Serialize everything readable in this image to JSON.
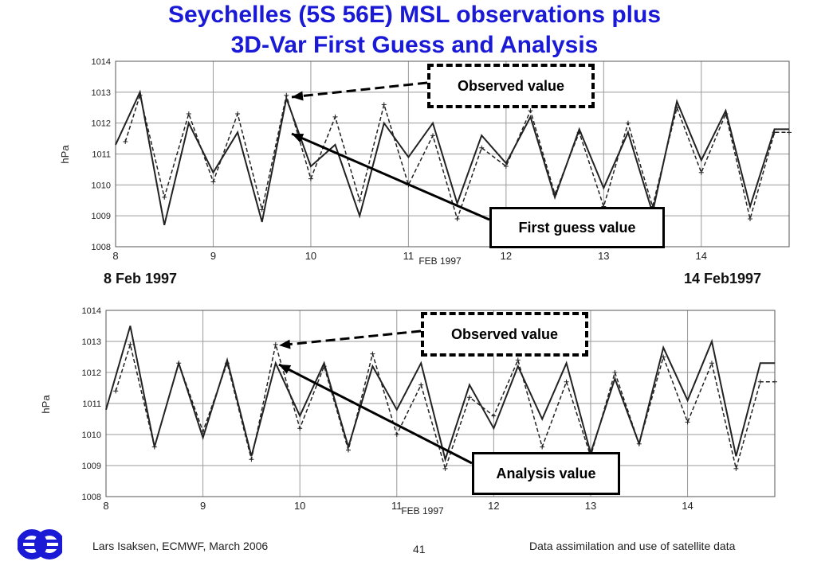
{
  "title": {
    "line1": "Seychelles (5S 56E) MSL observations plus",
    "line2": "3D-Var First Guess and Analysis"
  },
  "date_labels": {
    "start": "8 Feb 1997",
    "end": "14 Feb1997"
  },
  "callouts": {
    "observed_top": "Observed value",
    "first_guess": "First guess value",
    "observed_bottom": "Observed value",
    "analysis": "Analysis value"
  },
  "footer": {
    "author": "Lars Isaksen, ECMWF, March 2006",
    "page": "41",
    "course": "Data assimilation and use of satellite data"
  },
  "colors": {
    "title": "#1a1ad6",
    "plot_line": "#222222",
    "grid": "#9a9a9a"
  },
  "chart_data": [
    {
      "type": "line",
      "ylabel": "hPa",
      "xlabel": "FEB 1997",
      "ylim": [
        1008,
        1014
      ],
      "xlim": [
        8,
        14.9
      ],
      "yticks": [
        "1008",
        "1009",
        "1010",
        "1011",
        "1012",
        "1013",
        "1014"
      ],
      "xticks": [
        "8",
        "9",
        "10",
        "11",
        "12",
        "13",
        "14"
      ],
      "grid": true,
      "series": [
        {
          "style": "solid",
          "x": [
            8.0,
            8.25,
            8.5,
            8.75,
            9.0,
            9.25,
            9.5,
            9.75,
            10.0,
            10.25,
            10.5,
            10.75,
            11.0,
            11.25,
            11.5,
            11.75,
            12.0,
            12.25,
            12.5,
            12.75,
            13.0,
            13.25,
            13.5,
            13.75,
            14.0,
            14.25,
            14.5,
            14.75,
            14.9
          ],
          "values": [
            1011.3,
            1013.0,
            1008.7,
            1012.0,
            1010.4,
            1011.7,
            1008.8,
            1012.8,
            1010.6,
            1011.3,
            1009.0,
            1012.0,
            1010.9,
            1012.0,
            1009.4,
            1011.6,
            1010.7,
            1012.2,
            1009.6,
            1011.8,
            1009.9,
            1011.7,
            1009.1,
            1012.7,
            1010.8,
            1012.4,
            1009.3,
            1011.8,
            1011.8
          ]
        },
        {
          "style": "dashed",
          "x": [
            8.1,
            8.25,
            8.5,
            8.75,
            9.0,
            9.25,
            9.5,
            9.75,
            10.0,
            10.25,
            10.5,
            10.75,
            11.0,
            11.25,
            11.5,
            11.75,
            12.0,
            12.25,
            12.5,
            12.75,
            13.0,
            13.25,
            13.5,
            13.75,
            14.0,
            14.25,
            14.5,
            14.75,
            14.9
          ],
          "values": [
            1011.4,
            1012.9,
            1009.6,
            1012.3,
            1010.1,
            1012.3,
            1009.2,
            1012.9,
            1010.2,
            1012.2,
            1009.5,
            1012.6,
            1010.0,
            1011.6,
            1008.9,
            1011.2,
            1010.6,
            1012.4,
            1009.7,
            1011.7,
            1009.3,
            1012.0,
            1009.3,
            1012.5,
            1010.4,
            1012.3,
            1008.9,
            1011.7,
            1011.7
          ]
        }
      ]
    },
    {
      "type": "line",
      "ylabel": "hPa",
      "xlabel": "FEB 1997",
      "ylim": [
        1008,
        1014
      ],
      "xlim": [
        8,
        14.9
      ],
      "yticks": [
        "1008",
        "1009",
        "1010",
        "1011",
        "1012",
        "1013",
        "1014"
      ],
      "xticks": [
        "8",
        "9",
        "10",
        "11",
        "12",
        "13",
        "14"
      ],
      "grid": true,
      "series": [
        {
          "style": "solid",
          "x": [
            8.0,
            8.25,
            8.5,
            8.75,
            9.0,
            9.25,
            9.5,
            9.75,
            10.0,
            10.25,
            10.5,
            10.75,
            11.0,
            11.25,
            11.5,
            11.75,
            12.0,
            12.25,
            12.5,
            12.75,
            13.0,
            13.25,
            13.5,
            13.75,
            14.0,
            14.25,
            14.5,
            14.75,
            14.9
          ],
          "values": [
            1010.8,
            1013.5,
            1009.6,
            1012.3,
            1009.9,
            1012.4,
            1009.3,
            1012.3,
            1010.6,
            1012.3,
            1009.6,
            1012.2,
            1010.8,
            1012.3,
            1009.2,
            1011.6,
            1010.2,
            1012.2,
            1010.5,
            1012.3,
            1009.4,
            1011.8,
            1009.7,
            1012.8,
            1011.1,
            1013.0,
            1009.3,
            1012.3,
            1012.3
          ]
        },
        {
          "style": "dashed",
          "x": [
            8.1,
            8.25,
            8.5,
            8.75,
            9.0,
            9.25,
            9.5,
            9.75,
            10.0,
            10.25,
            10.5,
            10.75,
            11.0,
            11.25,
            11.5,
            11.75,
            12.0,
            12.25,
            12.5,
            12.75,
            13.0,
            13.25,
            13.5,
            13.75,
            14.0,
            14.25,
            14.5,
            14.75,
            14.9
          ],
          "values": [
            1011.4,
            1012.9,
            1009.6,
            1012.3,
            1010.1,
            1012.3,
            1009.2,
            1012.9,
            1010.2,
            1012.2,
            1009.5,
            1012.6,
            1010.0,
            1011.6,
            1008.9,
            1011.2,
            1010.6,
            1012.4,
            1009.6,
            1011.7,
            1009.3,
            1012.0,
            1009.7,
            1012.5,
            1010.4,
            1012.3,
            1008.9,
            1011.7,
            1011.7
          ]
        }
      ]
    }
  ]
}
